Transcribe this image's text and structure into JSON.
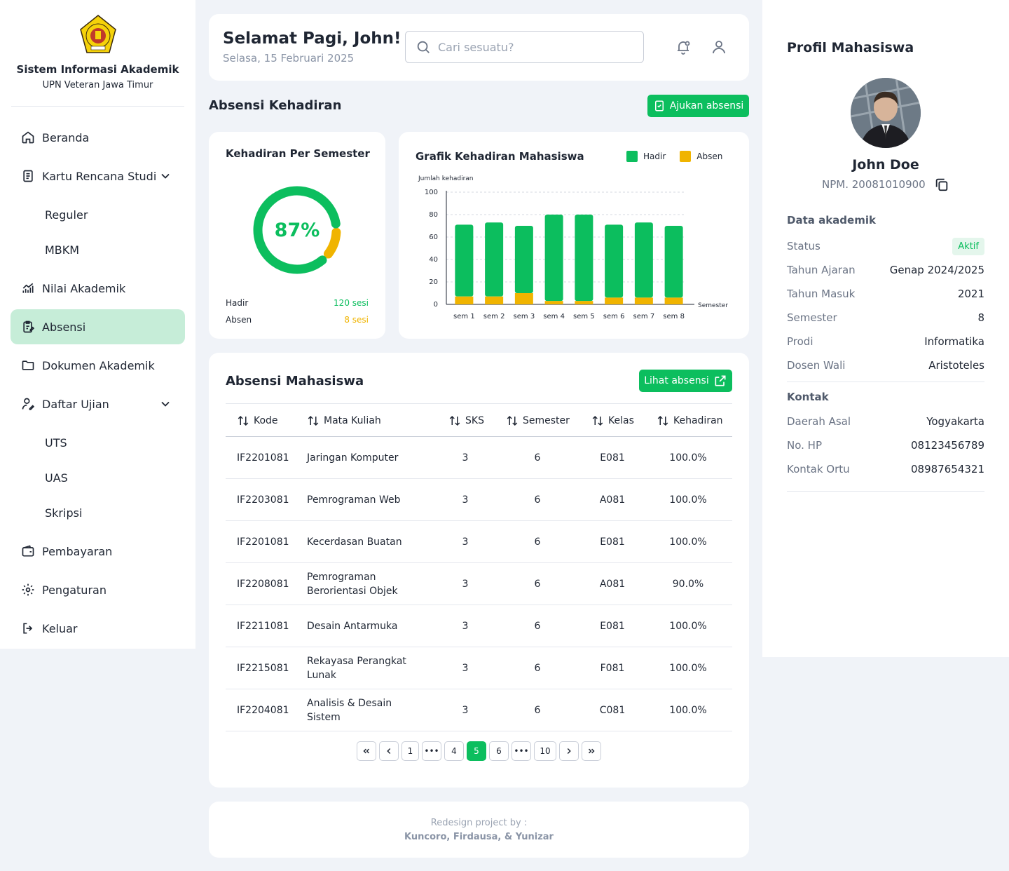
{
  "sidebar": {
    "title": "Sistem Informasi Akademik",
    "subtitle": "UPN Veteran Jawa Timur",
    "items": {
      "beranda": "Beranda",
      "krs": "Kartu Rencana Studi",
      "reguler": "Reguler",
      "mbkm": "MBKM",
      "nilai": "Nilai Akademik",
      "absensi": "Absensi",
      "dokumen": "Dokumen Akademik",
      "ujian": "Daftar Ujian",
      "uts": "UTS",
      "uas": "UAS",
      "skripsi": "Skripsi",
      "pembayaran": "Pembayaran",
      "pengaturan": "Pengaturan",
      "keluar": "Keluar"
    }
  },
  "header": {
    "greeting": "Selamat Pagi, John!",
    "date": "Selasa, 15 Februari 2025",
    "search_placeholder": "Cari sesuatu?"
  },
  "attendance": {
    "section_title": "Absensi Kehadiran",
    "submit_label": "Ajukan absensi",
    "donut": {
      "title": "Kehadiran Per Semester",
      "percent_label": "87%",
      "percent_value": 87,
      "hadir_label": "Hadir",
      "hadir_value": "120 sesi",
      "absen_label": "Absen",
      "absen_value": "8 sesi"
    }
  },
  "chart_data": {
    "type": "bar",
    "title": "Grafik Kehadiran Mahasiswa",
    "ylabel": "Jumlah kehadiran",
    "xlabel": "Semester",
    "categories": [
      "sem 1",
      "sem 2",
      "sem 3",
      "sem 4",
      "sem 5",
      "sem 6",
      "sem 7",
      "sem 8"
    ],
    "ylim": [
      0,
      100
    ],
    "yticks": [
      "0",
      "20",
      "40",
      "60",
      "80",
      "100"
    ],
    "stacked": true,
    "grid": true,
    "legend_position": "top-right",
    "series": [
      {
        "name": "Absen",
        "color": "#F0B400",
        "values": [
          7,
          7,
          10,
          3,
          3,
          6,
          6,
          6
        ]
      },
      {
        "name": "Hadir",
        "color": "#0CBE5E",
        "values": [
          64,
          66,
          60,
          77,
          77,
          65,
          67,
          64
        ]
      }
    ]
  },
  "table": {
    "title": "Absensi Mahasiswa",
    "view_label": "Lihat absensi",
    "headers": [
      "Kode",
      "Mata Kuliah",
      "SKS",
      "Semester",
      "Kelas",
      "Kehadiran"
    ],
    "rows": [
      [
        "IF2201081",
        "Jaringan Komputer",
        "3",
        "6",
        "E081",
        "100.0%"
      ],
      [
        "IF2203081",
        "Pemrograman Web",
        "3",
        "6",
        "A081",
        "100.0%"
      ],
      [
        "IF2201081",
        "Kecerdasan Buatan",
        "3",
        "6",
        "E081",
        "100.0%"
      ],
      [
        "IF2208081",
        "Pemrograman Berorientasi Objek",
        "3",
        "6",
        "A081",
        "90.0%"
      ],
      [
        "IF2211081",
        "Desain Antarmuka",
        "3",
        "6",
        "E081",
        "100.0%"
      ],
      [
        "IF2215081",
        "Rekayasa Perangkat Lunak",
        "3",
        "6",
        "F081",
        "100.0%"
      ],
      [
        "IF2204081",
        "Analisis & Desain Sistem",
        "3",
        "6",
        "C081",
        "100.0%"
      ]
    ],
    "pagination": [
      "1",
      "•••",
      "4",
      "5",
      "6",
      "•••",
      "10"
    ],
    "current_page": "5"
  },
  "footer": {
    "line1": "Redesign project by :",
    "line2": "Kuncoro, Firdausa, & Yunizar"
  },
  "profile": {
    "title": "Profil Mahasiswa",
    "name": "John Doe",
    "npm": "NPM. 20081010900",
    "academic_title": "Data akademik",
    "academic": [
      {
        "k": "Status",
        "v": "Aktif"
      },
      {
        "k": "Tahun Ajaran",
        "v": "Genap 2024/2025"
      },
      {
        "k": "Tahun Masuk",
        "v": "2021"
      },
      {
        "k": "Semester",
        "v": "8"
      },
      {
        "k": "Prodi",
        "v": "Informatika"
      },
      {
        "k": "Dosen Wali",
        "v": "Aristoteles"
      }
    ],
    "contact_title": "Kontak",
    "contact": [
      {
        "k": "Daerah Asal",
        "v": "Yogyakarta"
      },
      {
        "k": "No. HP",
        "v": "08123456789"
      },
      {
        "k": "Kontak Ortu",
        "v": "08987654321"
      }
    ]
  },
  "colors": {
    "accent": "#0CBE5E",
    "warning": "#F0B400",
    "active_nav_bg": "#C6EDD8"
  }
}
